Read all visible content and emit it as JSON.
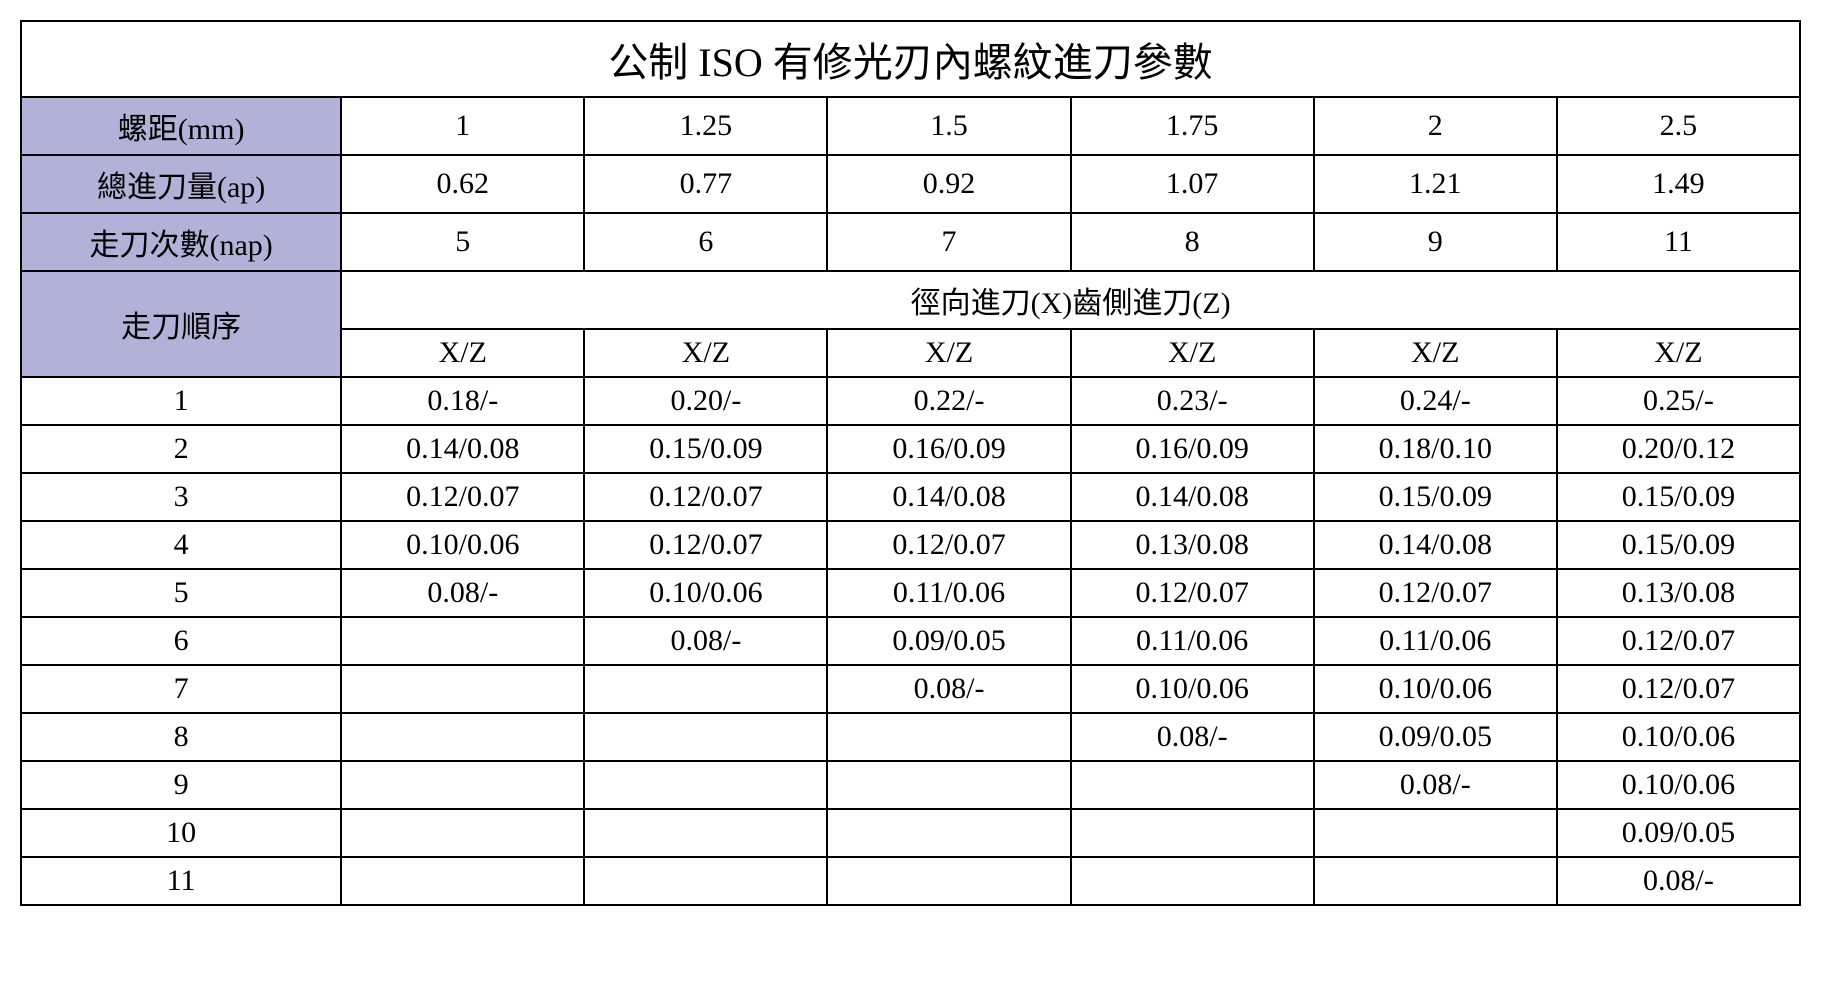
{
  "title": "公制 ISO 有修光刃內螺紋進刀參數",
  "row_labels": {
    "pitch": "螺距(mm)",
    "total_ap": "總進刀量(ap)",
    "nap": "走刀次數(nap)",
    "sequence": "走刀順序",
    "infeed_header": "徑向進刀(X)齒側進刀(Z)",
    "xz": "X/Z"
  },
  "pitch_values": [
    "1",
    "1.25",
    "1.5",
    "1.75",
    "2",
    "2.5"
  ],
  "total_ap_values": [
    "0.62",
    "0.77",
    "0.92",
    "1.07",
    "1.21",
    "1.49"
  ],
  "nap_values": [
    "5",
    "6",
    "7",
    "8",
    "9",
    "11"
  ],
  "sequence_numbers": [
    "1",
    "2",
    "3",
    "4",
    "5",
    "6",
    "7",
    "8",
    "9",
    "10",
    "11"
  ],
  "data": [
    [
      "0.18/-",
      "0.20/-",
      "0.22/-",
      "0.23/-",
      "0.24/-",
      "0.25/-"
    ],
    [
      "0.14/0.08",
      "0.15/0.09",
      "0.16/0.09",
      "0.16/0.09",
      "0.18/0.10",
      "0.20/0.12"
    ],
    [
      "0.12/0.07",
      "0.12/0.07",
      "0.14/0.08",
      "0.14/0.08",
      "0.15/0.09",
      "0.15/0.09"
    ],
    [
      "0.10/0.06",
      "0.12/0.07",
      "0.12/0.07",
      "0.13/0.08",
      "0.14/0.08",
      "0.15/0.09"
    ],
    [
      "0.08/-",
      "0.10/0.06",
      "0.11/0.06",
      "0.12/0.07",
      "0.12/0.07",
      "0.13/0.08"
    ],
    [
      "",
      "0.08/-",
      "0.09/0.05",
      "0.11/0.06",
      "0.11/0.06",
      "0.12/0.07"
    ],
    [
      "",
      "",
      "0.08/-",
      "0.10/0.06",
      "0.10/0.06",
      "0.12/0.07"
    ],
    [
      "",
      "",
      "",
      "0.08/-",
      "0.09/0.05",
      "0.10/0.06"
    ],
    [
      "",
      "",
      "",
      "",
      "0.08/-",
      "0.10/0.06"
    ],
    [
      "",
      "",
      "",
      "",
      "",
      "0.09/0.05"
    ],
    [
      "",
      "",
      "",
      "",
      "",
      "0.08/-"
    ]
  ],
  "style": {
    "header_bg": "#b2b2d8",
    "border_color": "#000000",
    "title_fontsize": 40,
    "cell_fontsize": 30
  }
}
